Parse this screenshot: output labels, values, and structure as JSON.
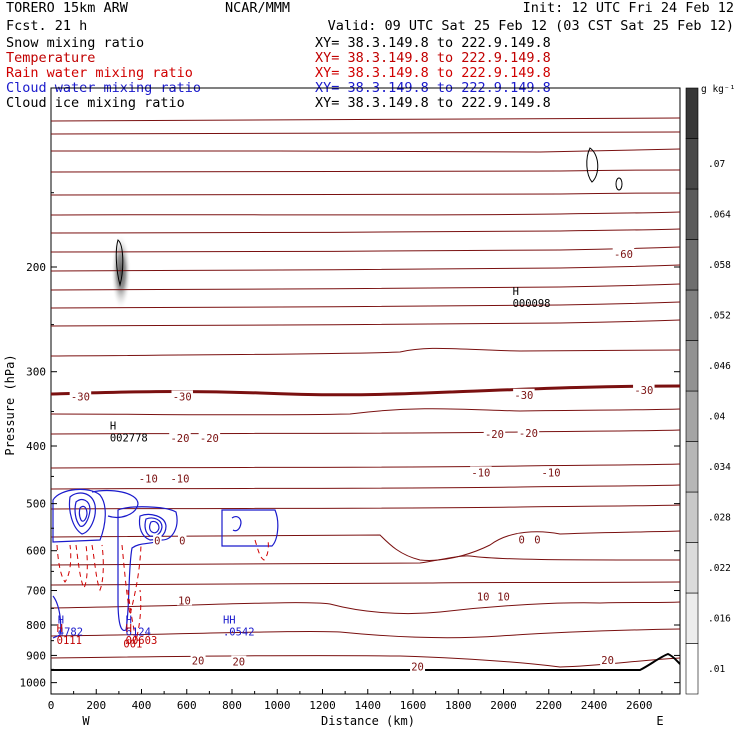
{
  "header": {
    "model": "TORERO  15km ARW",
    "org": "NCAR/MMM",
    "init": "Init: 12 UTC Fri 24 Feb 12",
    "fcst": "Fcst.   21 h",
    "valid": "Valid: 09 UTC Sat 25 Feb 12 (03 CST Sat 25 Feb 12)"
  },
  "legend": [
    {
      "label": "Snow mixing ratio",
      "xy": "XY=  38.3.149.8 to 222.9.149.8",
      "label_color": "#000000",
      "xy_color": "#000000"
    },
    {
      "label": "Temperature",
      "xy": "XY=  38.3.149.8 to 222.9.149.8",
      "label_color": "#c00000",
      "xy_color": "#c00000"
    },
    {
      "label": "Rain water mixing ratio",
      "xy": "XY=  38.3.149.8 to 222.9.149.8",
      "label_color": "#d00000",
      "xy_color": "#d00000"
    },
    {
      "label": "Cloud water mixing ratio",
      "xy": "XY=  38.3.149.8 to 222.9.149.8",
      "label_color": "#1a1acc",
      "xy_color": "#1a1acc"
    },
    {
      "label": "Cloud ice mixing ratio",
      "xy": "XY=  38.3.149.8 to 222.9.149.8",
      "label_color": "#000000",
      "xy_color": "#000000"
    }
  ],
  "chart_data": {
    "type": "contour cross-section",
    "xlabel": "Distance (km)",
    "ylabel": "Pressure (hPa)",
    "xlim": [
      0,
      2780
    ],
    "ylim": [
      100,
      1045
    ],
    "x_ticks": [
      "0",
      "200",
      "400",
      "600",
      "800",
      "1000",
      "1200",
      "1400",
      "1600",
      "1800",
      "2000",
      "2200",
      "2400",
      "2600"
    ],
    "y_ticks": [
      "200",
      "300",
      "400",
      "500",
      "600",
      "700",
      "800",
      "900",
      "1000"
    ],
    "x_end_labels": {
      "left": "W",
      "right": "E"
    },
    "colorbar": {
      "unit": "g kg⁻¹",
      "levels": [
        ".01",
        ".016",
        ".022",
        ".028",
        ".034",
        ".04",
        ".046",
        ".052",
        ".058",
        ".064",
        ".07"
      ]
    },
    "temperature_labels": [
      {
        "text": "-60",
        "x": 2530,
        "p": 190
      },
      {
        "text": "-30",
        "x": 130,
        "p": 330
      },
      {
        "text": "-30",
        "x": 580,
        "p": 330
      },
      {
        "text": "-30",
        "x": 2090,
        "p": 328
      },
      {
        "text": "-30",
        "x": 2620,
        "p": 322
      },
      {
        "text": "-20",
        "x": 570,
        "p": 388
      },
      {
        "text": "-20",
        "x": 700,
        "p": 388
      },
      {
        "text": "-20",
        "x": 1960,
        "p": 382
      },
      {
        "text": "-20",
        "x": 2110,
        "p": 380
      },
      {
        "text": "-10",
        "x": 430,
        "p": 454
      },
      {
        "text": "-10",
        "x": 570,
        "p": 454
      },
      {
        "text": "-10",
        "x": 1900,
        "p": 443
      },
      {
        "text": "-10",
        "x": 2210,
        "p": 443
      },
      {
        "text": "0",
        "x": 470,
        "p": 577
      },
      {
        "text": "0",
        "x": 580,
        "p": 577
      },
      {
        "text": "0",
        "x": 2080,
        "p": 575
      },
      {
        "text": "0",
        "x": 2150,
        "p": 575
      },
      {
        "text": "10",
        "x": 590,
        "p": 727
      },
      {
        "text": "10",
        "x": 1910,
        "p": 716
      },
      {
        "text": "10",
        "x": 2000,
        "p": 716
      },
      {
        "text": "20",
        "x": 650,
        "p": 918
      },
      {
        "text": "20",
        "x": 830,
        "p": 922
      },
      {
        "text": "20",
        "x": 1620,
        "p": 940
      },
      {
        "text": "20",
        "x": 2460,
        "p": 916
      }
    ],
    "max_labels": [
      {
        "h": "H",
        "value": "000098",
        "x": 2040,
        "p": 223
      },
      {
        "h": "H",
        "value": "002778",
        "x": 260,
        "p": 375
      },
      {
        "h": "H",
        "value": "4782",
        "x": 30,
        "p": 795
      },
      {
        "h": "H",
        "value": "0111",
        "x": 25,
        "p": 822
      },
      {
        "h": "H",
        "value": "6124",
        "x": 330,
        "p": 795
      },
      {
        "h": "H",
        "value": "00603",
        "x": 330,
        "p": 822
      },
      {
        "h": "001",
        "value": "",
        "x": 320,
        "p": 873
      },
      {
        "h": "HH",
        "value": ".0542",
        "x": 760,
        "p": 795
      }
    ]
  }
}
